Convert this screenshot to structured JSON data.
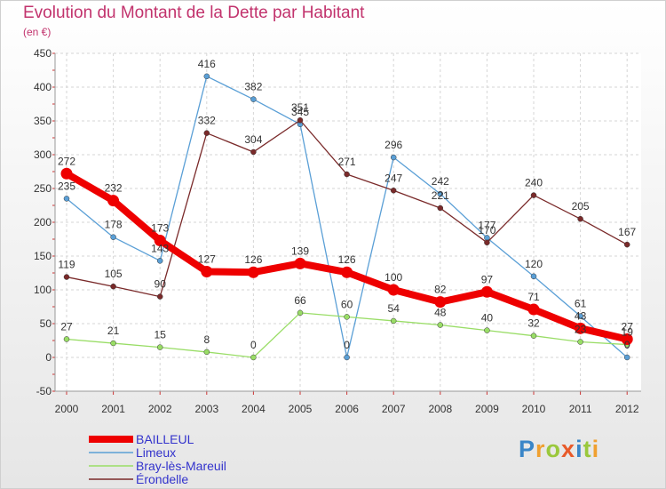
{
  "header": {
    "title": "Evolution du Montant de la Dette par Habitant",
    "subtitle": "(en €)"
  },
  "logo": {
    "text": "Proxiti"
  },
  "chart_data": {
    "type": "line",
    "title": "Evolution du Montant de la Dette par Habitant",
    "subtitle": "(en €)",
    "categories": [
      "2000",
      "2001",
      "2002",
      "2003",
      "2004",
      "2005",
      "2006",
      "2007",
      "2008",
      "2009",
      "2010",
      "2011",
      "2012"
    ],
    "ylim": [
      -50,
      450
    ],
    "yticks": [
      -50,
      0,
      50,
      100,
      150,
      200,
      250,
      300,
      350,
      400,
      450
    ],
    "grid": true,
    "legend": "bottom-left",
    "series": [
      {
        "name": "BAILLEUL",
        "color": "#ee0000",
        "values": [
          272,
          232,
          173,
          127,
          126,
          139,
          126,
          100,
          82,
          97,
          71,
          43,
          27
        ]
      },
      {
        "name": "Limeux",
        "color": "#5a9fd6",
        "values": [
          235,
          178,
          143,
          416,
          382,
          345,
          0,
          296,
          242,
          177,
          120,
          61,
          0
        ]
      },
      {
        "name": "Bray-lès-Mareuil",
        "color": "#99dd66",
        "values": [
          27,
          21,
          15,
          8,
          0,
          66,
          60,
          54,
          48,
          40,
          32,
          23,
          19
        ]
      },
      {
        "name": "Érondelle",
        "color": "#7a2a2a",
        "values": [
          119,
          105,
          90,
          332,
          304,
          351,
          271,
          247,
          221,
          170,
          240,
          205,
          167
        ]
      }
    ]
  }
}
